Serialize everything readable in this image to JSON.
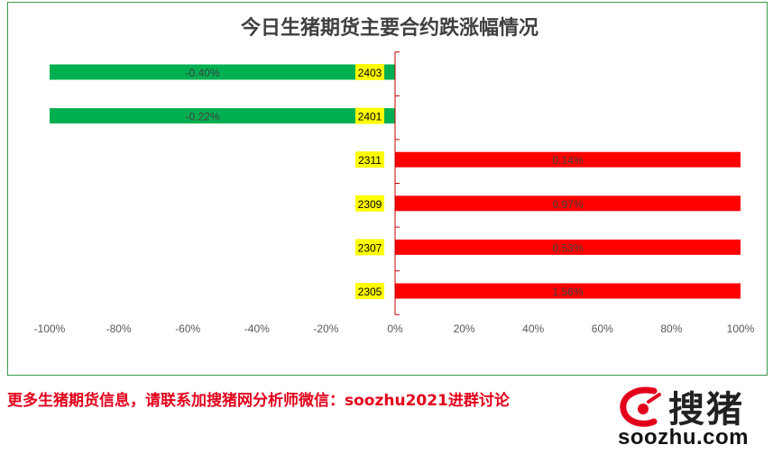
{
  "chart_data": {
    "type": "bar",
    "orientation": "horizontal",
    "title": "今日生猪期货主要合约跌涨幅情况",
    "categories": [
      "2403",
      "2401",
      "2311",
      "2309",
      "2307",
      "2305"
    ],
    "values": [
      -0.4,
      -0.22,
      0.14,
      0.97,
      0.53,
      1.56
    ],
    "data_labels": [
      "-0.40%",
      "-0.22%",
      "0.14%",
      "0.97%",
      "0.53%",
      "1.56%"
    ],
    "x_ticks": [
      "-100%",
      "-80%",
      "-60%",
      "-40%",
      "-20%",
      "0%",
      "20%",
      "40%",
      "60%",
      "80%",
      "100%"
    ],
    "xlim": [
      -100,
      100
    ],
    "grid": false,
    "legend": "none",
    "colors": {
      "positive": "#ff0000",
      "negative": "#00b050",
      "category_label_bg": "#ffff00",
      "axis": "#c00000"
    }
  },
  "footer": {
    "text": "更多生猪期货信息，请联系加搜猪网分析师微信：soozhu2021进群讨论"
  },
  "logo": {
    "cn_text": "搜猪",
    "en_text": "soozhu.com",
    "icon": "soozhu-logo-mark-icon"
  }
}
